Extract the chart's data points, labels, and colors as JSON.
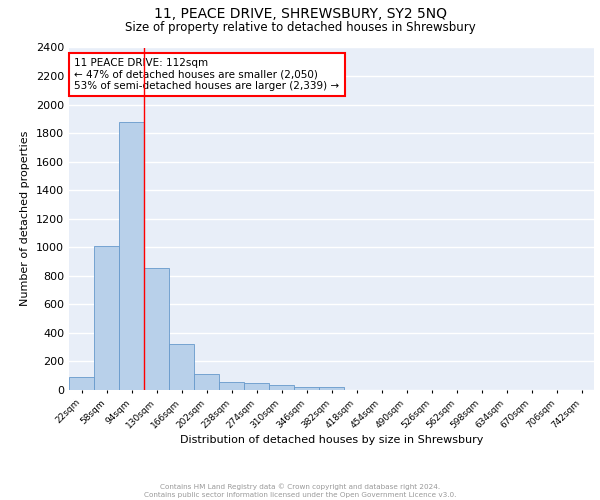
{
  "title": "11, PEACE DRIVE, SHREWSBURY, SY2 5NQ",
  "subtitle": "Size of property relative to detached houses in Shrewsbury",
  "xlabel": "Distribution of detached houses by size in Shrewsbury",
  "ylabel": "Number of detached properties",
  "bin_labels": [
    "22sqm",
    "58sqm",
    "94sqm",
    "130sqm",
    "166sqm",
    "202sqm",
    "238sqm",
    "274sqm",
    "310sqm",
    "346sqm",
    "382sqm",
    "418sqm",
    "454sqm",
    "490sqm",
    "526sqm",
    "562sqm",
    "598sqm",
    "634sqm",
    "670sqm",
    "706sqm",
    "742sqm"
  ],
  "bin_values": [
    90,
    1010,
    1880,
    855,
    320,
    112,
    55,
    48,
    35,
    22,
    22,
    0,
    0,
    0,
    0,
    0,
    0,
    0,
    0,
    0,
    0
  ],
  "bar_color": "#b8d0ea",
  "bar_edge_color": "#6699cc",
  "red_line_x": 2.5,
  "annotation_text": "11 PEACE DRIVE: 112sqm\n← 47% of detached houses are smaller (2,050)\n53% of semi-detached houses are larger (2,339) →",
  "annotation_box_color": "white",
  "annotation_box_edge_color": "red",
  "ylim": [
    0,
    2400
  ],
  "yticks": [
    0,
    200,
    400,
    600,
    800,
    1000,
    1200,
    1400,
    1600,
    1800,
    2000,
    2200,
    2400
  ],
  "background_color": "#e8eef8",
  "grid_color": "white",
  "footer_line1": "Contains HM Land Registry data © Crown copyright and database right 2024.",
  "footer_line2": "Contains public sector information licensed under the Open Government Licence v3.0."
}
